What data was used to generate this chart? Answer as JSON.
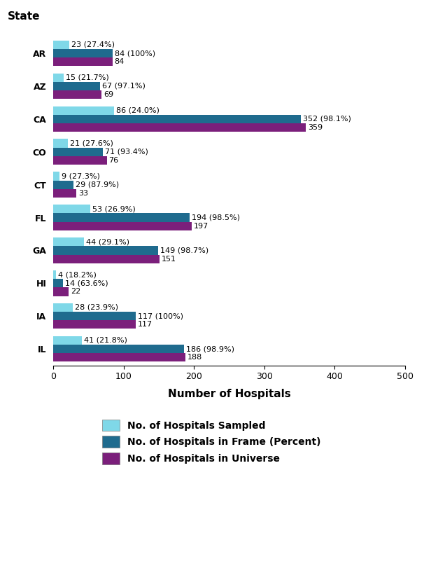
{
  "states": [
    "AR",
    "AZ",
    "CA",
    "CO",
    "CT",
    "FL",
    "GA",
    "HI",
    "IA",
    "IL"
  ],
  "sampled": [
    23,
    15,
    86,
    21,
    9,
    53,
    44,
    4,
    28,
    41
  ],
  "sampled_labels": [
    "23 (27.4%)",
    "15 (21.7%)",
    "86 (24.0%)",
    "21 (27.6%)",
    "9 (27.3%)",
    "53 (26.9%)",
    "44 (29.1%)",
    "4 (18.2%)",
    "28 (23.9%)",
    "41 (21.8%)"
  ],
  "frame": [
    84,
    67,
    352,
    71,
    29,
    194,
    149,
    14,
    117,
    186
  ],
  "frame_labels": [
    "84 (100%)",
    "67 (97.1%)",
    "352 (98.1%)",
    "71 (93.4%)",
    "29 (87.9%)",
    "194 (98.5%)",
    "149 (98.7%)",
    "14 (63.6%)",
    "117 (100%)",
    "186 (98.9%)"
  ],
  "universe": [
    84,
    69,
    359,
    76,
    33,
    197,
    151,
    22,
    117,
    188
  ],
  "universe_labels": [
    "84",
    "69",
    "359",
    "76",
    "33",
    "197",
    "151",
    "22",
    "117",
    "188"
  ],
  "color_sampled": "#7FD8E8",
  "color_frame": "#1F6B8E",
  "color_universe": "#7B1F7B",
  "xlabel": "Number of Hospitals",
  "ylabel": "State",
  "xlim": [
    0,
    500
  ],
  "xticks": [
    0,
    100,
    200,
    300,
    400,
    500
  ],
  "legend_labels": [
    "No. of Hospitals Sampled",
    "No. of Hospitals in Frame (Percent)",
    "No. of Hospitals in Universe"
  ],
  "bar_height": 0.26,
  "label_fontsize": 8,
  "axis_label_fontsize": 11,
  "tick_fontsize": 9,
  "legend_fontsize": 10,
  "ylabel_fontsize": 11
}
